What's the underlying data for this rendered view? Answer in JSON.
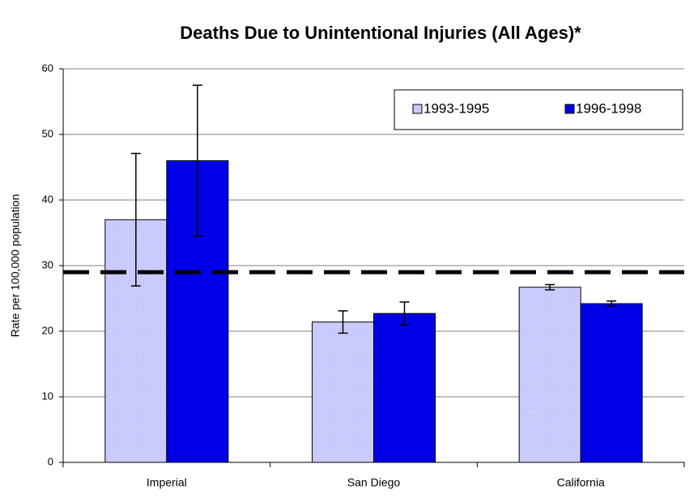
{
  "chart_data": {
    "type": "bar",
    "title": "Deaths Due to Unintentional Injuries (All Ages)*",
    "y_label": "Rate per 100,000 population",
    "categories": [
      "Imperial",
      "San Diego",
      "California"
    ],
    "series": [
      {
        "name": "1993-1995",
        "color": "#ccccff",
        "values": [
          37.0,
          21.4,
          26.7
        ],
        "errors": [
          10.1,
          1.7,
          0.4
        ]
      },
      {
        "name": "1996-1998",
        "color": "#0000e6",
        "values": [
          46.0,
          22.7,
          24.2
        ],
        "errors": [
          11.5,
          1.75,
          0.4
        ]
      }
    ],
    "reference_line": 29,
    "ylim": [
      0,
      60
    ],
    "yticks": [
      0,
      10,
      20,
      30,
      40,
      50,
      60
    ],
    "grid": true,
    "legend": "top-right"
  }
}
